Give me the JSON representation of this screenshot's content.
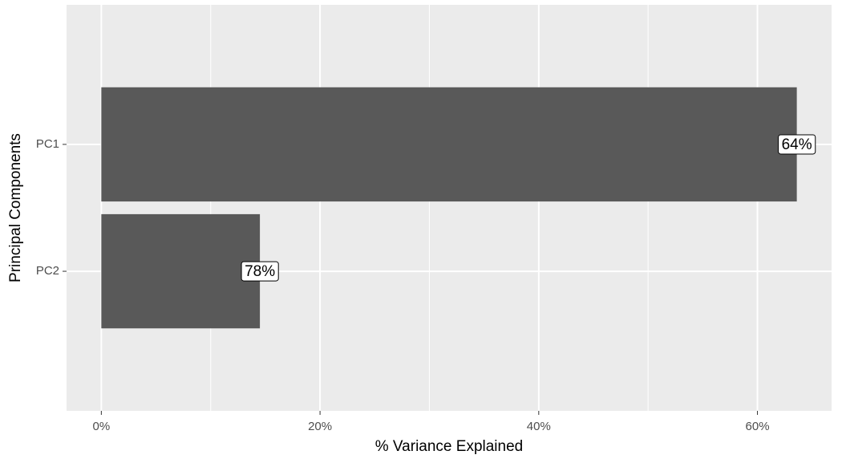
{
  "chart_data": {
    "type": "hbar",
    "x_label": "% Variance Explained",
    "y_label": "Principal Components",
    "categories": [
      "PC1",
      "PC2"
    ],
    "values": [
      63.6,
      14.5
    ],
    "annotations": [
      "64%",
      "78%"
    ],
    "color": "#595959",
    "xlim": [
      -3.18,
      66.78
    ],
    "xticks": [
      {
        "value": 0,
        "label": "0%"
      },
      {
        "value": 20,
        "label": "20%"
      },
      {
        "value": 40,
        "label": "40%"
      },
      {
        "value": 60,
        "label": "60%"
      }
    ],
    "x_minor_grid": [
      10,
      30,
      50
    ],
    "grid": true
  }
}
